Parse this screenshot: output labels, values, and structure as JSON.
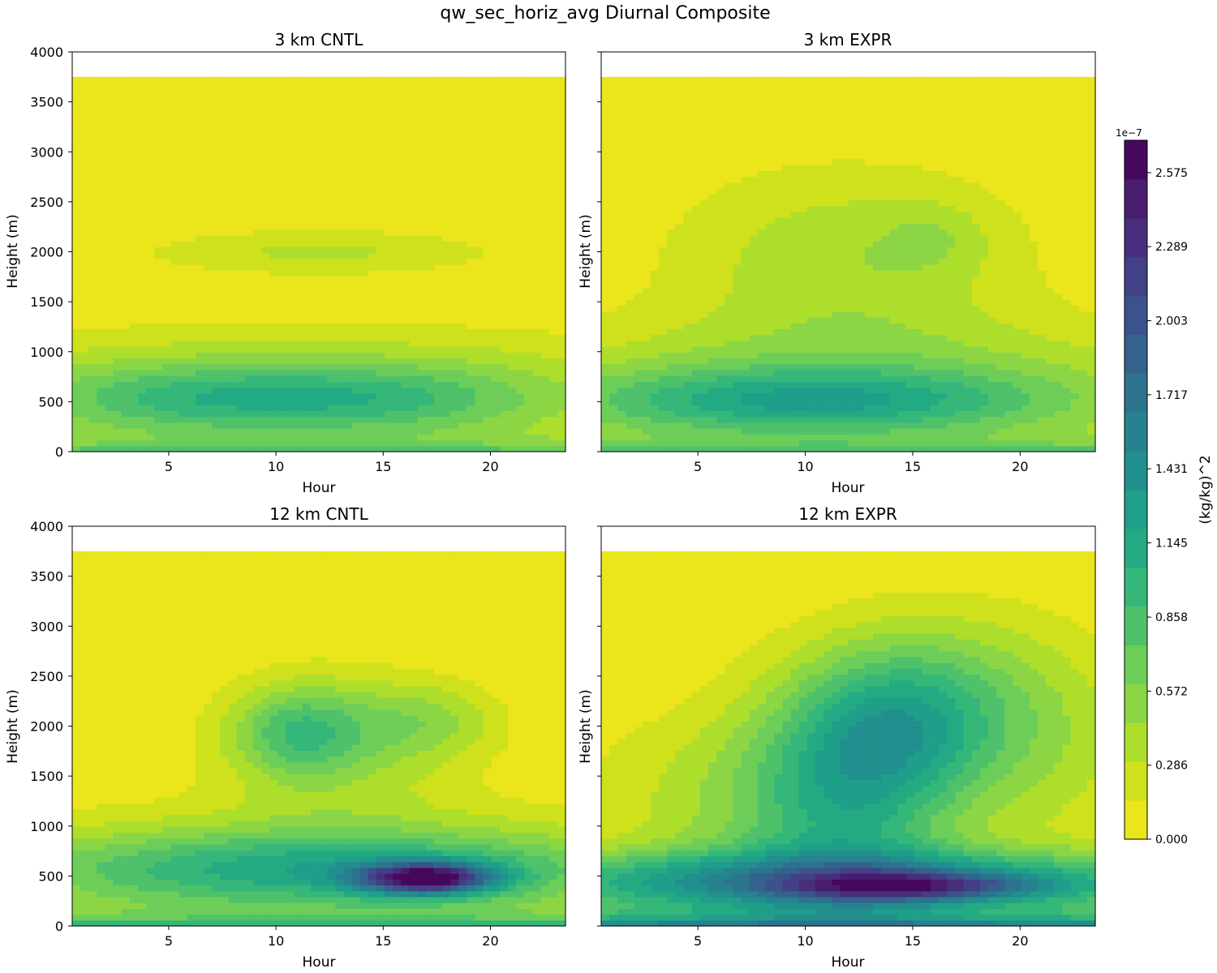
{
  "figure_title": "qw_sec_horiz_avg Diurnal Composite",
  "colorbar": {
    "label": "(kg/kg)^2",
    "exponent_label": "1e−7",
    "max": 2.7,
    "levels": 19,
    "tick_values": [
      0.0,
      0.286,
      0.572,
      0.858,
      1.145,
      1.431,
      1.717,
      2.003,
      2.289,
      2.575
    ],
    "tick_labels": [
      "0.000",
      "0.286",
      "0.572",
      "0.858",
      "1.145",
      "1.431",
      "1.717",
      "2.003",
      "2.289",
      "2.575"
    ],
    "colors": [
      "#ebe51c",
      "#cfe11c",
      "#aede2c",
      "#8cd645",
      "#6cce59",
      "#4fc16b",
      "#35b779",
      "#24aa83",
      "#1f9e89",
      "#218f8d",
      "#26828e",
      "#2c738e",
      "#33638d",
      "#3b528b",
      "#424086",
      "#472f7d",
      "#481d6f",
      "#46085c"
    ]
  },
  "chart_data": [
    {
      "id": "p3cntl",
      "type": "heatmap",
      "title": "3 km CNTL",
      "xlabel": "Hour",
      "ylabel": "Height (m)",
      "xlim": [
        0.5,
        23.5
      ],
      "ylim": [
        0,
        4000
      ],
      "data_top": 3750,
      "xticks": [
        5,
        10,
        15,
        20
      ],
      "yticks": [
        0,
        500,
        1000,
        1500,
        2000,
        2500,
        3000,
        3500,
        4000
      ],
      "show_yticklabels": true,
      "value_units": "1e-7 (kg/kg)^2",
      "surface_value": 0.72,
      "features": [
        {
          "x": 6,
          "z": 520,
          "sx": 5,
          "sz": 230,
          "amp": 0.45
        },
        {
          "x": 15,
          "z": 520,
          "sx": 5,
          "sz": 230,
          "amp": 0.42
        },
        {
          "x": 11,
          "z": 620,
          "sx": 14,
          "sz": 420,
          "amp": 0.55
        },
        {
          "x": 12,
          "z": 2000,
          "sx": 6,
          "sz": 170,
          "amp": 0.33
        }
      ]
    },
    {
      "id": "p3expr",
      "type": "heatmap",
      "title": "3 km EXPR",
      "xlabel": "Hour",
      "ylabel": "Height (m)",
      "xlim": [
        0.5,
        23.5
      ],
      "ylim": [
        0,
        4000
      ],
      "data_top": 3750,
      "xticks": [
        5,
        10,
        15,
        20
      ],
      "yticks": [
        0,
        500,
        1000,
        1500,
        2000,
        2500,
        3000,
        3500,
        4000
      ],
      "show_yticklabels": false,
      "value_units": "1e-7 (kg/kg)^2",
      "surface_value": 0.75,
      "features": [
        {
          "x": 10,
          "z": 500,
          "sx": 8,
          "sz": 230,
          "amp": 0.75
        },
        {
          "x": 12,
          "z": 650,
          "sx": 14,
          "sz": 450,
          "amp": 0.5
        },
        {
          "x": 12,
          "z": 1900,
          "sx": 6,
          "sz": 700,
          "amp": 0.42
        },
        {
          "x": 16,
          "z": 2150,
          "sx": 1.8,
          "sz": 250,
          "amp": 0.18
        }
      ]
    },
    {
      "id": "p12cntl",
      "type": "heatmap",
      "title": "12 km CNTL",
      "xlabel": "Hour",
      "ylabel": "Height (m)",
      "xlim": [
        0.5,
        23.5
      ],
      "ylim": [
        0,
        4000
      ],
      "data_top": 3750,
      "xticks": [
        5,
        10,
        15,
        20
      ],
      "yticks": [
        0,
        500,
        1000,
        1500,
        2000,
        2500,
        3000,
        3500,
        4000
      ],
      "show_yticklabels": true,
      "value_units": "1e-7 (kg/kg)^2",
      "surface_value": 0.95,
      "features": [
        {
          "x": 17,
          "z": 480,
          "sx": 2.2,
          "sz": 110,
          "amp": 1.9
        },
        {
          "x": 12,
          "z": 560,
          "sx": 10,
          "sz": 260,
          "amp": 0.72
        },
        {
          "x": 13,
          "z": 620,
          "sx": 14,
          "sz": 420,
          "amp": 0.45
        },
        {
          "x": 11,
          "z": 1950,
          "sx": 2.2,
          "sz": 320,
          "amp": 0.65
        },
        {
          "x": 17,
          "z": 2050,
          "sx": 2.5,
          "sz": 280,
          "amp": 0.38
        },
        {
          "x": 13,
          "z": 1800,
          "sx": 4,
          "sz": 550,
          "amp": 0.35
        }
      ]
    },
    {
      "id": "p12expr",
      "type": "heatmap",
      "title": "12 km EXPR",
      "xlabel": "Hour",
      "ylabel": "Height (m)",
      "xlim": [
        0.5,
        23.5
      ],
      "ylim": [
        0,
        4000
      ],
      "data_top": 3750,
      "xticks": [
        5,
        10,
        15,
        20
      ],
      "yticks": [
        0,
        500,
        1000,
        1500,
        2000,
        2500,
        3000,
        3500,
        4000
      ],
      "show_yticklabels": false,
      "value_units": "1e-7 (kg/kg)^2",
      "surface_value": 1.6,
      "features": [
        {
          "x": 15,
          "z": 400,
          "sx": 4,
          "sz": 100,
          "amp": 1.0
        },
        {
          "x": 12,
          "z": 450,
          "sx": 12,
          "sz": 220,
          "amp": 1.35
        },
        {
          "x": 12,
          "z": 1100,
          "sx": 3.5,
          "sz": 700,
          "amp": 0.6
        },
        {
          "x": 14,
          "z": 2000,
          "sx": 3.5,
          "sz": 550,
          "amp": 0.75
        },
        {
          "x": 8,
          "z": 1200,
          "sx": 6,
          "sz": 700,
          "amp": 0.4
        },
        {
          "x": 17,
          "z": 2300,
          "sx": 5,
          "sz": 650,
          "amp": 0.45
        },
        {
          "x": 22,
          "z": 1500,
          "sx": 3,
          "sz": 700,
          "amp": 0.2
        }
      ]
    }
  ]
}
